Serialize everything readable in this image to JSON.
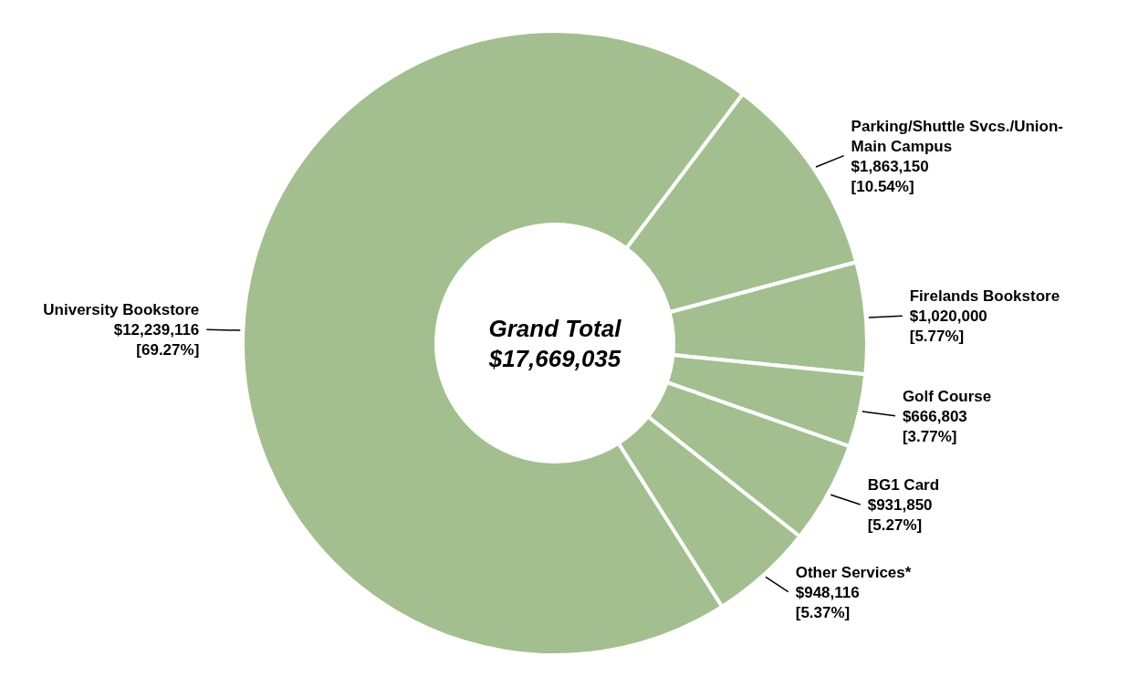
{
  "chart_data": {
    "type": "donut",
    "categories": [
      "Parking/Shuttle Svcs./Union-Main Campus",
      "Firelands Bookstore",
      "Golf Course",
      "BG1 Card",
      "Other Services*",
      "University Bookstore"
    ],
    "values": [
      1863150,
      1020000,
      666803,
      931850,
      948116,
      12239116
    ],
    "value_labels": [
      "$1,863,150\n[10.54%]",
      "$1,020,000\n[5.77%]",
      "$666,803\n[3.77%]",
      "$931,850\n[5.27%]",
      "$948,116\n[5.37%]",
      "$12,239,116\n[69.27%]"
    ],
    "colors": [
      "#a3bf8f",
      "#a3bf8f",
      "#a3bf8f",
      "#a3bf8f",
      "#a3bf8f",
      "#a3bf8f"
    ],
    "annotations": [
      "Grand Total",
      "$17,669,035"
    ]
  }
}
